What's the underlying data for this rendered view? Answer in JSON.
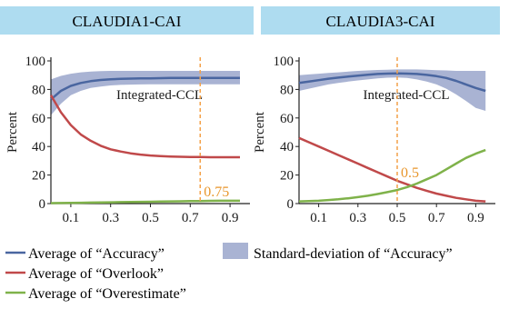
{
  "legend": {
    "accuracy": "Average of “Accuracy”",
    "std": "Standard-deviation of “Accuracy”",
    "overlook": "Average of “Overlook”",
    "overestimate": "Average of “Overestimate”"
  },
  "colors": {
    "accuracy": "#4a66a0",
    "std_band": "#a9b3d3",
    "overlook": "#c0494a",
    "overestimate": "#7fb24a",
    "vline": "#f4a148",
    "vline_label": "#e8962c",
    "title_bg": "#aedcf0"
  },
  "chart_data": [
    {
      "type": "line",
      "title": "CLAUDIA1-CAI",
      "xlabel": "Integrated-CCL",
      "ylabel": "Percent",
      "xlim": [
        0.0,
        1.0
      ],
      "ylim": [
        0,
        100
      ],
      "xticks": [
        0.1,
        0.3,
        0.5,
        0.7,
        0.9
      ],
      "xtick_labels": [
        "0.1",
        "0.3",
        "0.5",
        "0.7",
        "0.9"
      ],
      "yticks": [
        0,
        20,
        40,
        60,
        80,
        100
      ],
      "ytick_labels": [
        "0",
        "20",
        "40",
        "60",
        "80",
        "100"
      ],
      "vline": {
        "x": 0.75,
        "label": "0.75"
      },
      "x": [
        0.0,
        0.05,
        0.1,
        0.15,
        0.2,
        0.25,
        0.3,
        0.35,
        0.4,
        0.45,
        0.5,
        0.55,
        0.6,
        0.65,
        0.7,
        0.75,
        0.8,
        0.85,
        0.9,
        0.95
      ],
      "series": [
        {
          "key": "accuracy",
          "name": "Average of “Accuracy”",
          "values": [
            73,
            79,
            82.5,
            84.5,
            85.8,
            86.6,
            87.1,
            87.4,
            87.6,
            87.7,
            87.8,
            87.9,
            88.0,
            88.0,
            88.0,
            88.0,
            88.0,
            88.0,
            88.0,
            88.0
          ]
        },
        {
          "key": "overlook",
          "name": "Average of “Overlook”",
          "values": [
            76,
            64,
            55,
            48.5,
            44,
            40.5,
            38,
            36.5,
            35.2,
            34.3,
            33.7,
            33.3,
            33.0,
            32.8,
            32.7,
            32.6,
            32.5,
            32.5,
            32.5,
            32.5
          ]
        },
        {
          "key": "overestimate",
          "name": "Average of “Overestimate”",
          "values": [
            0.3,
            0.4,
            0.5,
            0.6,
            0.7,
            0.8,
            0.9,
            1.0,
            1.1,
            1.2,
            1.3,
            1.4,
            1.5,
            1.6,
            1.7,
            1.8,
            1.9,
            2.0,
            2.0,
            2.0
          ]
        }
      ],
      "std_band": {
        "name": "Standard-deviation of “Accuracy”",
        "upper": [
          87,
          89.5,
          91,
          92,
          92.5,
          92.8,
          93,
          93,
          93,
          93,
          93,
          93,
          93,
          93,
          93,
          93,
          93,
          93,
          93,
          93
        ],
        "lower": [
          62,
          70,
          76,
          79,
          81,
          82,
          82.8,
          83.2,
          83.4,
          83.5,
          83.6,
          83.6,
          83.6,
          83.6,
          83.6,
          83.6,
          83.6,
          83.6,
          83.6,
          83.6
        ]
      }
    },
    {
      "type": "line",
      "title": "CLAUDIA3-CAI",
      "xlabel": "Integrated-CCL",
      "ylabel": "Percent",
      "xlim": [
        0.0,
        1.0
      ],
      "ylim": [
        0,
        100
      ],
      "xticks": [
        0.1,
        0.3,
        0.5,
        0.7,
        0.9
      ],
      "xtick_labels": [
        "0.1",
        "0.3",
        "0.5",
        "0.7",
        "0.9"
      ],
      "yticks": [
        0,
        20,
        40,
        60,
        80,
        100
      ],
      "ytick_labels": [
        "0",
        "20",
        "40",
        "60",
        "80",
        "100"
      ],
      "vline": {
        "x": 0.5,
        "label": "0.5"
      },
      "x": [
        0.0,
        0.05,
        0.1,
        0.15,
        0.2,
        0.25,
        0.3,
        0.35,
        0.4,
        0.45,
        0.5,
        0.55,
        0.6,
        0.65,
        0.7,
        0.75,
        0.8,
        0.85,
        0.9,
        0.95
      ],
      "series": [
        {
          "key": "accuracy",
          "name": "Average of “Accuracy”",
          "values": [
            84.5,
            85.5,
            86.5,
            87.5,
            88.3,
            89,
            89.7,
            90.3,
            90.8,
            91.1,
            91.2,
            91.1,
            90.8,
            90.2,
            89.3,
            88,
            86,
            83.5,
            81,
            79
          ]
        },
        {
          "key": "overlook",
          "name": "Average of “Overlook”",
          "values": [
            46,
            43,
            40,
            37,
            34,
            31,
            28,
            25,
            22,
            19,
            16,
            13.5,
            11,
            9,
            7,
            5.5,
            4,
            3,
            2,
            1.5
          ]
        },
        {
          "key": "overestimate",
          "name": "Average of “Overestimate”",
          "values": [
            1.5,
            1.7,
            2.0,
            2.5,
            3.0,
            3.7,
            4.5,
            5.5,
            6.7,
            8.0,
            9.5,
            11.5,
            14,
            17,
            20,
            24,
            28,
            32,
            35,
            37.5
          ]
        }
      ],
      "std_band": {
        "name": "Standard-deviation of “Accuracy”",
        "upper": [
          90,
          90.5,
          91,
          91.5,
          92,
          92.5,
          93,
          93.3,
          93.6,
          93.8,
          94,
          94,
          94,
          93.8,
          93.5,
          93.3,
          93,
          93,
          93,
          93
        ],
        "lower": [
          79,
          80.5,
          82,
          83.5,
          84.5,
          85.5,
          86.3,
          87,
          87.7,
          88.2,
          88.4,
          88,
          87,
          85.5,
          83.5,
          80.5,
          76.5,
          72,
          67,
          65
        ]
      }
    }
  ]
}
